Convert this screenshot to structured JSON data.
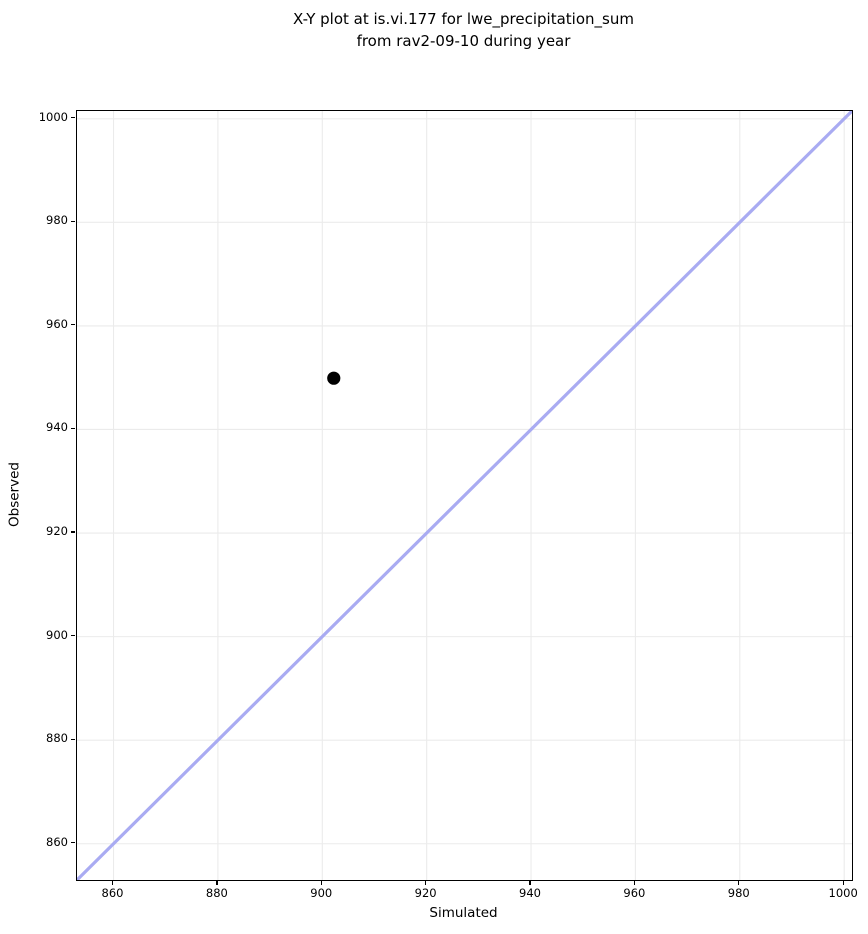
{
  "chart_data": {
    "type": "scatter",
    "title_lines": [
      "X-Y plot at is.vi.177 for lwe_precipitation_sum",
      "from rav2-09-10 during year"
    ],
    "xlabel": "Simulated",
    "ylabel": "Observed",
    "xlim": [
      853,
      1001.5
    ],
    "ylim": [
      853,
      1001.5
    ],
    "xticks": [
      860,
      880,
      900,
      920,
      940,
      960,
      980,
      1000
    ],
    "yticks": [
      860,
      880,
      900,
      920,
      940,
      960,
      980,
      1000
    ],
    "grid": true,
    "legend": "none",
    "points": [
      {
        "x": 902.2,
        "y": 949.9
      }
    ],
    "identity_line": {
      "x1": 853,
      "y1": 853,
      "x2": 1001.5,
      "y2": 1001.5
    },
    "colors": {
      "identity_line": "#a9abf2",
      "point": "#000000",
      "grid": "#ebebeb",
      "spine": "#000000",
      "text": "#000000",
      "background": "#ffffff"
    }
  }
}
